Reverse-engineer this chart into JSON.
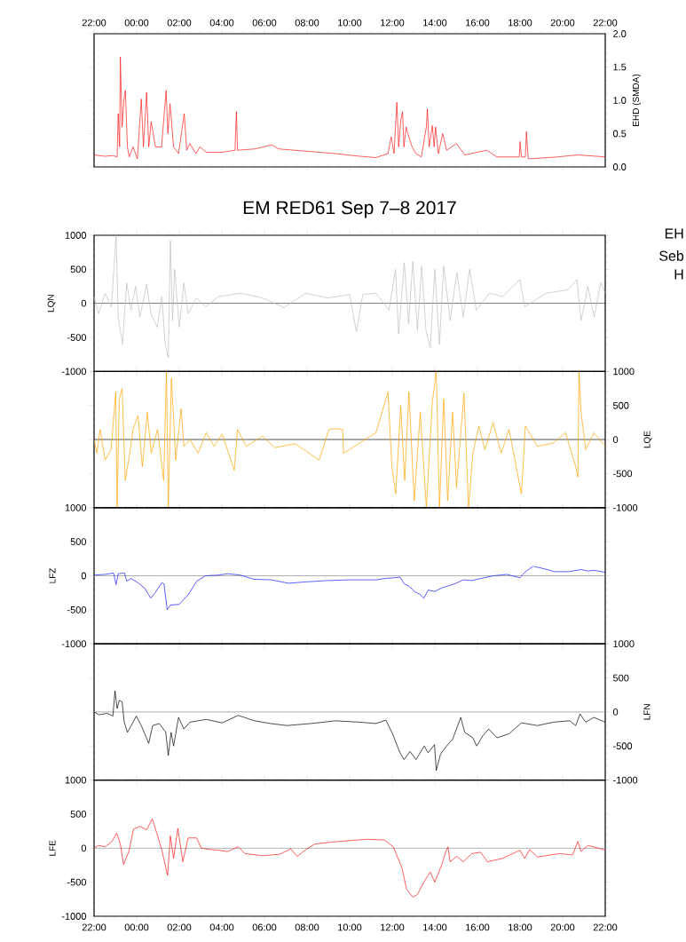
{
  "chart_data": [
    {
      "type": "line",
      "ylabel": "EHD (SMDA)",
      "xlim": [
        "2017-09-07T22:00",
        "2017-09-08T22:00"
      ],
      "ylim": [
        0,
        2.0
      ],
      "xticks": [
        {
          "value": "2017-09-07T22:00",
          "label": "22:00"
        },
        {
          "value": "2017-09-08T00:00",
          "label": "00:00"
        },
        {
          "value": "2017-09-08T02:00",
          "label": "02:00"
        },
        {
          "value": "2017-09-08T04:00",
          "label": "04:00"
        },
        {
          "value": "2017-09-08T06:00",
          "label": "06:00"
        },
        {
          "value": "2017-09-08T08:00",
          "label": "08:00"
        },
        {
          "value": "2017-09-08T10:00",
          "label": "10:00"
        },
        {
          "value": "2017-09-08T12:00",
          "label": "12:00"
        },
        {
          "value": "2017-09-08T14:00",
          "label": "14:00"
        },
        {
          "value": "2017-09-08T16:00",
          "label": "16:00"
        },
        {
          "value": "2017-09-08T18:00",
          "label": "18:00"
        },
        {
          "value": "2017-09-08T20:00",
          "label": "20:00"
        },
        {
          "value": "2017-09-08T22:00",
          "label": "22:00"
        }
      ],
      "yticks": [
        {
          "value": 0,
          "label": "0.0"
        },
        {
          "value": 0.5,
          "label": "0.5"
        },
        {
          "value": 1.0,
          "label": "1.0"
        },
        {
          "value": 1.5,
          "label": "1.5"
        },
        {
          "value": 2.0,
          "label": "2.0"
        }
      ],
      "series": [
        {
          "color": "#ff1a1a",
          "x": [
            "2017-09-07T22:00",
            "2017-09-07T22:31",
            "2017-09-07T22:53",
            "2017-09-07T23:05",
            "2017-09-07T23:08",
            "2017-09-07T23:12",
            "2017-09-07T23:14",
            "2017-09-07T23:19",
            "2017-09-07T23:24",
            "2017-09-07T23:28",
            "2017-09-07T23:34",
            "2017-09-07T23:39",
            "2017-09-07T23:50",
            "2017-09-08T00:02",
            "2017-09-08T00:13",
            "2017-09-08T00:19",
            "2017-09-08T00:28",
            "2017-09-08T00:34",
            "2017-09-08T00:41",
            "2017-09-08T00:53",
            "2017-09-08T01:10",
            "2017-09-08T01:23",
            "2017-09-08T01:28",
            "2017-09-08T01:34",
            "2017-09-08T01:44",
            "2017-09-08T01:58",
            "2017-09-08T02:14",
            "2017-09-08T02:21",
            "2017-09-08T02:30",
            "2017-09-08T02:47",
            "2017-09-08T02:58",
            "2017-09-08T03:16",
            "2017-09-08T04:01",
            "2017-09-08T04:37",
            "2017-09-08T04:41",
            "2017-09-08T04:44",
            "2017-09-08T05:32",
            "2017-09-08T06:21",
            "2017-09-08T06:40",
            "2017-09-08T08:11",
            "2017-09-08T09:20",
            "2017-09-08T10:28",
            "2017-09-08T11:14",
            "2017-09-08T11:48",
            "2017-09-08T11:57",
            "2017-09-08T12:05",
            "2017-09-08T12:13",
            "2017-09-08T12:18",
            "2017-09-08T12:24",
            "2017-09-08T12:29",
            "2017-09-08T12:33",
            "2017-09-08T12:39",
            "2017-09-08T12:44",
            "2017-09-08T12:56",
            "2017-09-08T13:07",
            "2017-09-08T13:22",
            "2017-09-08T13:36",
            "2017-09-08T13:39",
            "2017-09-08T13:44",
            "2017-09-08T13:53",
            "2017-09-08T13:58",
            "2017-09-08T14:02",
            "2017-09-08T14:10",
            "2017-09-08T14:22",
            "2017-09-08T14:33",
            "2017-09-08T15:01",
            "2017-09-08T15:24",
            "2017-09-08T16:26",
            "2017-09-08T16:55",
            "2017-09-08T17:58",
            "2017-09-08T18:00",
            "2017-09-08T18:04",
            "2017-09-08T18:15",
            "2017-09-08T18:18",
            "2017-09-08T18:23",
            "2017-09-08T19:46",
            "2017-09-08T20:43",
            "2017-09-08T22:00"
          ],
          "values": [
            0.18,
            0.16,
            0.17,
            0.15,
            0.8,
            0.3,
            1.65,
            0.6,
            1.0,
            1.15,
            0.3,
            0.15,
            0.3,
            0.12,
            1.02,
            0.3,
            1.12,
            0.3,
            0.68,
            0.3,
            0.3,
            1.15,
            0.5,
            0.95,
            0.3,
            0.2,
            0.8,
            0.25,
            0.35,
            0.2,
            0.3,
            0.22,
            0.22,
            0.25,
            0.83,
            0.25,
            0.27,
            0.33,
            0.27,
            0.23,
            0.2,
            0.16,
            0.14,
            0.2,
            0.45,
            0.2,
            0.97,
            0.3,
            0.7,
            0.83,
            0.3,
            0.6,
            0.5,
            0.3,
            0.2,
            0.15,
            0.6,
            0.87,
            0.3,
            0.62,
            0.3,
            0.6,
            0.2,
            0.5,
            0.25,
            0.35,
            0.18,
            0.25,
            0.15,
            0.15,
            0.38,
            0.15,
            0.15,
            0.53,
            0.12,
            0.15,
            0.18,
            0.15
          ]
        }
      ]
    },
    {
      "type": "line",
      "title": "EM RED61 Sep 7–8 2017",
      "ylabel": "LQN",
      "annotations": [
        "EH",
        "Seb",
        "H"
      ],
      "xlim": [
        "2017-09-07T22:00",
        "2017-09-08T22:00"
      ],
      "ylim": [
        -1000,
        1000
      ],
      "tick_labels": "y",
      "xticks": [
        {
          "value": "2017-09-07T22:00",
          "label": null
        },
        {
          "value": "2017-09-08T00:00",
          "label": null
        },
        {
          "value": "2017-09-08T02:00",
          "label": null
        },
        {
          "value": "2017-09-08T04:00",
          "label": null
        },
        {
          "value": "2017-09-08T06:00",
          "label": null
        },
        {
          "value": "2017-09-08T08:00",
          "label": null
        },
        {
          "value": "2017-09-08T10:00",
          "label": null
        },
        {
          "value": "2017-09-08T12:00",
          "label": null
        },
        {
          "value": "2017-09-08T14:00",
          "label": null
        },
        {
          "value": "2017-09-08T16:00",
          "label": null
        },
        {
          "value": "2017-09-08T18:00",
          "label": null
        },
        {
          "value": "2017-09-08T20:00",
          "label": null
        },
        {
          "value": "2017-09-08T22:00",
          "label": null
        }
      ],
      "yticks": [
        -1000,
        -500,
        0,
        500,
        1000
      ],
      "ref_lines": [
        {
          "axis": "y",
          "value": 0,
          "color": "#000000"
        }
      ],
      "series": [
        {
          "color": "#bfbfbf",
          "x": [
            "2017-09-07T22:00",
            "2017-09-07T22:13",
            "2017-09-07T22:31",
            "2017-09-07T22:49",
            "2017-09-07T23:02",
            "2017-09-07T23:08",
            "2017-09-07T23:20",
            "2017-09-07T23:32",
            "2017-09-07T23:44",
            "2017-09-07T23:57",
            "2017-09-08T00:09",
            "2017-09-08T00:28",
            "2017-09-08T00:40",
            "2017-09-08T00:58",
            "2017-09-08T01:11",
            "2017-09-08T01:20",
            "2017-09-08T01:29",
            "2017-09-08T01:35",
            "2017-09-08T01:41",
            "2017-09-08T01:47",
            "2017-09-08T02:00",
            "2017-09-08T02:13",
            "2017-09-08T02:25",
            "2017-09-08T02:49",
            "2017-09-08T03:14",
            "2017-09-08T03:51",
            "2017-09-08T04:52",
            "2017-09-08T05:54",
            "2017-09-08T06:55",
            "2017-09-08T07:57",
            "2017-09-08T08:58",
            "2017-09-08T10:00",
            "2017-09-08T10:19",
            "2017-09-08T10:37",
            "2017-09-08T11:14",
            "2017-09-08T11:51",
            "2017-09-08T12:09",
            "2017-09-08T12:18",
            "2017-09-08T12:34",
            "2017-09-08T12:46",
            "2017-09-08T12:58",
            "2017-09-08T13:11",
            "2017-09-08T13:23",
            "2017-09-08T13:35",
            "2017-09-08T13:47",
            "2017-09-08T14:00",
            "2017-09-08T14:13",
            "2017-09-08T14:25",
            "2017-09-08T14:43",
            "2017-09-08T15:02",
            "2017-09-08T15:20",
            "2017-09-08T15:38",
            "2017-09-08T15:57",
            "2017-09-08T16:34",
            "2017-09-08T17:11",
            "2017-09-08T18:00",
            "2017-09-08T18:13",
            "2017-09-08T19:14",
            "2017-09-08T20:16",
            "2017-09-08T20:40",
            "2017-09-08T20:52",
            "2017-09-08T21:11",
            "2017-09-08T21:29",
            "2017-09-08T21:47",
            "2017-09-08T22:00"
          ],
          "values": [
            100,
            -150,
            150,
            -50,
            1000,
            -200,
            -600,
            300,
            -100,
            250,
            -200,
            280,
            -150,
            -350,
            100,
            -580,
            -800,
            920,
            -250,
            500,
            -350,
            300,
            -150,
            80,
            -50,
            100,
            150,
            80,
            -60,
            150,
            80,
            130,
            -420,
            130,
            150,
            -100,
            500,
            -450,
            600,
            -300,
            620,
            -400,
            550,
            -400,
            -650,
            500,
            -600,
            550,
            -250,
            450,
            -200,
            500,
            -100,
            150,
            100,
            350,
            -50,
            150,
            200,
            350,
            -250,
            250,
            -200,
            300,
            150
          ]
        }
      ]
    },
    {
      "type": "line",
      "ylabel": "LQE",
      "xlim": [
        "2017-09-07T22:00",
        "2017-09-08T22:00"
      ],
      "ylim": [
        -1000,
        1000
      ],
      "tick_labels": "y",
      "xticks": [
        {
          "value": "2017-09-07T22:00",
          "label": null
        },
        {
          "value": "2017-09-08T00:00",
          "label": null
        },
        {
          "value": "2017-09-08T02:00",
          "label": null
        },
        {
          "value": "2017-09-08T04:00",
          "label": null
        },
        {
          "value": "2017-09-08T06:00",
          "label": null
        },
        {
          "value": "2017-09-08T08:00",
          "label": null
        },
        {
          "value": "2017-09-08T10:00",
          "label": null
        },
        {
          "value": "2017-09-08T12:00",
          "label": null
        },
        {
          "value": "2017-09-08T14:00",
          "label": null
        },
        {
          "value": "2017-09-08T16:00",
          "label": null
        },
        {
          "value": "2017-09-08T18:00",
          "label": null
        },
        {
          "value": "2017-09-08T20:00",
          "label": null
        },
        {
          "value": "2017-09-08T22:00",
          "label": null
        }
      ],
      "yticks": [
        -1000,
        -500,
        0,
        500,
        1000
      ],
      "ref_lines": [
        {
          "axis": "y",
          "value": 0,
          "color": "#000000"
        }
      ],
      "series": [
        {
          "color": "#ffa500",
          "x": [
            "2017-09-07T22:00",
            "2017-09-07T22:08",
            "2017-09-07T22:17",
            "2017-09-07T22:31",
            "2017-09-07T22:48",
            "2017-09-07T23:01",
            "2017-09-07T23:05",
            "2017-09-07T23:11",
            "2017-09-07T23:19",
            "2017-09-07T23:28",
            "2017-09-07T23:39",
            "2017-09-07T23:50",
            "2017-09-08T00:04",
            "2017-09-08T00:16",
            "2017-09-08T00:30",
            "2017-09-08T00:41",
            "2017-09-08T00:59",
            "2017-09-08T01:16",
            "2017-09-08T01:24",
            "2017-09-08T01:29",
            "2017-09-08T01:38",
            "2017-09-08T01:50",
            "2017-09-08T02:05",
            "2017-09-08T02:13",
            "2017-09-08T02:30",
            "2017-09-08T02:53",
            "2017-09-08T03:16",
            "2017-09-08T03:38",
            "2017-09-08T04:01",
            "2017-09-08T04:35",
            "2017-09-08T04:44",
            "2017-09-08T05:09",
            "2017-09-08T05:55",
            "2017-09-08T06:29",
            "2017-09-08T07:26",
            "2017-09-08T08:34",
            "2017-09-08T09:02",
            "2017-09-08T09:20",
            "2017-09-08T09:40",
            "2017-09-08T09:43",
            "2017-09-08T10:28",
            "2017-09-08T11:14",
            "2017-09-08T11:48",
            "2017-09-08T11:59",
            "2017-09-08T12:10",
            "2017-09-08T12:24",
            "2017-09-08T12:35",
            "2017-09-08T12:47",
            "2017-09-08T13:02",
            "2017-09-08T13:19",
            "2017-09-08T13:36",
            "2017-09-08T13:53",
            "2017-09-08T14:04",
            "2017-09-08T14:13",
            "2017-09-08T14:25",
            "2017-09-08T14:36",
            "2017-09-08T14:50",
            "2017-09-08T15:01",
            "2017-09-08T15:22",
            "2017-09-08T15:35",
            "2017-09-08T15:47",
            "2017-09-08T16:04",
            "2017-09-08T16:21",
            "2017-09-08T16:44",
            "2017-09-08T17:07",
            "2017-09-08T17:29",
            "2017-09-08T18:04",
            "2017-09-08T18:15",
            "2017-09-08T18:49",
            "2017-09-08T19:34",
            "2017-09-08T20:08",
            "2017-09-08T20:37",
            "2017-09-08T20:43",
            "2017-09-08T20:46",
            "2017-09-08T20:52",
            "2017-09-08T21:05",
            "2017-09-08T21:28",
            "2017-09-08T22:00"
          ],
          "values": [
            0,
            -200,
            150,
            -300,
            -150,
            700,
            -1000,
            600,
            750,
            -600,
            -250,
            150,
            350,
            -400,
            400,
            -200,
            150,
            -600,
            1000,
            -1000,
            900,
            -300,
            450,
            -100,
            0,
            -200,
            100,
            -100,
            80,
            -450,
            150,
            -100,
            50,
            -120,
            -60,
            -300,
            150,
            160,
            150,
            -200,
            -50,
            100,
            700,
            -400,
            -800,
            500,
            -600,
            700,
            -900,
            400,
            -1000,
            550,
            1000,
            -1000,
            600,
            -900,
            400,
            -700,
            680,
            -1000,
            -200,
            200,
            -150,
            250,
            -200,
            150,
            -800,
            200,
            -100,
            -50,
            100,
            -400,
            -550,
            1000,
            400,
            -150,
            100,
            -100
          ]
        }
      ]
    },
    {
      "type": "line",
      "ylabel": "LFZ",
      "xlim": [
        "2017-09-07T22:00",
        "2017-09-08T22:00"
      ],
      "ylim": [
        -1000,
        1000
      ],
      "tick_labels": "y",
      "xticks": [
        {
          "value": "2017-09-07T22:00",
          "label": null
        },
        {
          "value": "2017-09-08T00:00",
          "label": null
        },
        {
          "value": "2017-09-08T02:00",
          "label": null
        },
        {
          "value": "2017-09-08T04:00",
          "label": null
        },
        {
          "value": "2017-09-08T06:00",
          "label": null
        },
        {
          "value": "2017-09-08T08:00",
          "label": null
        },
        {
          "value": "2017-09-08T10:00",
          "label": null
        },
        {
          "value": "2017-09-08T12:00",
          "label": null
        },
        {
          "value": "2017-09-08T14:00",
          "label": null
        },
        {
          "value": "2017-09-08T16:00",
          "label": null
        },
        {
          "value": "2017-09-08T18:00",
          "label": null
        },
        {
          "value": "2017-09-08T20:00",
          "label": null
        },
        {
          "value": "2017-09-08T22:00",
          "label": null
        }
      ],
      "yticks": [
        -1000,
        -500,
        0,
        500,
        1000
      ],
      "ref_lines": [
        {
          "axis": "y",
          "value": 0,
          "color": "#999999"
        }
      ],
      "series": [
        {
          "color": "#1a1aff",
          "x": [
            "2017-09-07T22:00",
            "2017-09-07T22:31",
            "2017-09-07T22:55",
            "2017-09-07T23:02",
            "2017-09-07T23:08",
            "2017-09-07T23:26",
            "2017-09-07T23:32",
            "2017-09-07T23:44",
            "2017-09-08T00:03",
            "2017-09-08T00:22",
            "2017-09-08T00:40",
            "2017-09-08T00:52",
            "2017-09-08T01:11",
            "2017-09-08T01:17",
            "2017-09-08T01:26",
            "2017-09-08T01:35",
            "2017-09-08T02:00",
            "2017-09-08T02:25",
            "2017-09-08T02:49",
            "2017-09-08T03:14",
            "2017-09-08T03:51",
            "2017-09-08T04:16",
            "2017-09-08T04:52",
            "2017-09-08T05:29",
            "2017-09-08T06:19",
            "2017-09-08T07:08",
            "2017-09-08T07:57",
            "2017-09-08T08:58",
            "2017-09-08T10:00",
            "2017-09-08T11:14",
            "2017-09-08T11:38",
            "2017-09-08T12:03",
            "2017-09-08T12:22",
            "2017-09-08T12:34",
            "2017-09-08T12:46",
            "2017-09-08T13:05",
            "2017-09-08T13:17",
            "2017-09-08T13:29",
            "2017-09-08T13:41",
            "2017-09-08T14:00",
            "2017-09-08T14:19",
            "2017-09-08T14:55",
            "2017-09-08T15:20",
            "2017-09-08T15:44",
            "2017-09-08T16:09",
            "2017-09-08T16:46",
            "2017-09-08T17:23",
            "2017-09-08T18:00",
            "2017-09-08T18:13",
            "2017-09-08T18:37",
            "2017-09-08T19:02",
            "2017-09-08T19:38",
            "2017-09-08T20:16",
            "2017-09-08T20:52",
            "2017-09-08T21:11",
            "2017-09-08T21:29",
            "2017-09-08T22:00"
          ],
          "values": [
            10,
            20,
            40,
            -130,
            30,
            40,
            -80,
            -40,
            -100,
            -180,
            -330,
            -250,
            -100,
            -120,
            -500,
            -430,
            -420,
            -280,
            -80,
            0,
            10,
            30,
            10,
            -50,
            -60,
            -110,
            -90,
            -70,
            -60,
            -60,
            -40,
            -30,
            -20,
            -120,
            -150,
            -240,
            -270,
            -330,
            -210,
            -230,
            -180,
            -120,
            -60,
            -70,
            -40,
            0,
            20,
            -30,
            50,
            140,
            110,
            60,
            60,
            90,
            70,
            80,
            50
          ]
        }
      ]
    },
    {
      "type": "line",
      "ylabel": "LFN",
      "xlim": [
        "2017-09-07T22:00",
        "2017-09-08T22:00"
      ],
      "ylim": [
        -1000,
        1000
      ],
      "tick_labels": "y",
      "xticks": [
        {
          "value": "2017-09-07T22:00",
          "label": null
        },
        {
          "value": "2017-09-08T00:00",
          "label": null
        },
        {
          "value": "2017-09-08T02:00",
          "label": null
        },
        {
          "value": "2017-09-08T04:00",
          "label": null
        },
        {
          "value": "2017-09-08T06:00",
          "label": null
        },
        {
          "value": "2017-09-08T08:00",
          "label": null
        },
        {
          "value": "2017-09-08T10:00",
          "label": null
        },
        {
          "value": "2017-09-08T12:00",
          "label": null
        },
        {
          "value": "2017-09-08T14:00",
          "label": null
        },
        {
          "value": "2017-09-08T16:00",
          "label": null
        },
        {
          "value": "2017-09-08T18:00",
          "label": null
        },
        {
          "value": "2017-09-08T20:00",
          "label": null
        },
        {
          "value": "2017-09-08T22:00",
          "label": null
        }
      ],
      "yticks": [
        -1000,
        -500,
        0,
        500,
        1000
      ],
      "ref_lines": [
        {
          "axis": "y",
          "value": 0,
          "color": "#999999"
        }
      ],
      "series": [
        {
          "color": "#000000",
          "x": [
            "2017-09-07T22:00",
            "2017-09-07T22:14",
            "2017-09-07T22:37",
            "2017-09-07T22:53",
            "2017-09-07T22:59",
            "2017-09-07T23:05",
            "2017-09-07T23:11",
            "2017-09-07T23:19",
            "2017-09-07T23:25",
            "2017-09-07T23:34",
            "2017-09-07T23:50",
            "2017-09-07T23:59",
            "2017-09-08T00:13",
            "2017-09-08T00:34",
            "2017-09-08T00:45",
            "2017-09-08T01:04",
            "2017-09-08T01:22",
            "2017-09-08T01:29",
            "2017-09-08T01:37",
            "2017-09-08T01:44",
            "2017-09-08T01:58",
            "2017-09-08T02:13",
            "2017-09-08T02:30",
            "2017-09-08T03:16",
            "2017-09-08T04:01",
            "2017-09-08T04:46",
            "2017-09-08T05:32",
            "2017-09-08T06:17",
            "2017-09-08T07:03",
            "2017-09-08T08:11",
            "2017-09-08T09:20",
            "2017-09-08T10:28",
            "2017-09-08T11:14",
            "2017-09-08T11:42",
            "2017-09-08T11:59",
            "2017-09-08T12:22",
            "2017-09-08T12:33",
            "2017-09-08T12:50",
            "2017-09-08T13:07",
            "2017-09-08T13:30",
            "2017-09-08T13:41",
            "2017-09-08T13:59",
            "2017-09-08T14:04",
            "2017-09-08T14:16",
            "2017-09-08T14:33",
            "2017-09-08T14:50",
            "2017-09-08T15:01",
            "2017-09-08T15:13",
            "2017-09-08T15:24",
            "2017-09-08T15:47",
            "2017-09-08T15:58",
            "2017-09-08T16:15",
            "2017-09-08T16:32",
            "2017-09-08T16:55",
            "2017-09-08T17:29",
            "2017-09-08T18:04",
            "2017-09-08T18:49",
            "2017-09-08T19:34",
            "2017-09-08T20:20",
            "2017-09-08T20:37",
            "2017-09-08T20:49",
            "2017-09-08T21:05",
            "2017-09-08T21:28",
            "2017-09-08T22:00"
          ],
          "values": [
            0,
            -40,
            -20,
            -60,
            310,
            50,
            170,
            150,
            -150,
            -300,
            -150,
            -60,
            -200,
            -460,
            -200,
            -170,
            -300,
            -640,
            -300,
            -500,
            -80,
            -250,
            -150,
            -110,
            -160,
            -50,
            -130,
            -170,
            -200,
            -170,
            -130,
            -150,
            -170,
            -120,
            -300,
            -600,
            -700,
            -580,
            -700,
            -500,
            -600,
            -480,
            -860,
            -620,
            -500,
            -400,
            -250,
            -80,
            -300,
            -380,
            -500,
            -350,
            -250,
            -380,
            -320,
            -160,
            -200,
            -150,
            -130,
            -200,
            -30,
            -150,
            -80,
            -150
          ]
        }
      ]
    },
    {
      "type": "line",
      "ylabel": "LFE",
      "xlim": [
        "2017-09-07T22:00",
        "2017-09-08T22:00"
      ],
      "ylim": [
        -1000,
        1000
      ],
      "xticks": [
        {
          "value": "2017-09-07T22:00",
          "label": "22:00"
        },
        {
          "value": "2017-09-08T00:00",
          "label": "00:00"
        },
        {
          "value": "2017-09-08T02:00",
          "label": "02:00"
        },
        {
          "value": "2017-09-08T04:00",
          "label": "04:00"
        },
        {
          "value": "2017-09-08T06:00",
          "label": "06:00"
        },
        {
          "value": "2017-09-08T08:00",
          "label": "08:00"
        },
        {
          "value": "2017-09-08T10:00",
          "label": "10:00"
        },
        {
          "value": "2017-09-08T12:00",
          "label": "12:00"
        },
        {
          "value": "2017-09-08T14:00",
          "label": "14:00"
        },
        {
          "value": "2017-09-08T16:00",
          "label": "16:00"
        },
        {
          "value": "2017-09-08T18:00",
          "label": "18:00"
        },
        {
          "value": "2017-09-08T20:00",
          "label": "20:00"
        },
        {
          "value": "2017-09-08T22:00",
          "label": "22:00"
        }
      ],
      "yticks": [
        -1000,
        -500,
        0,
        500,
        1000
      ],
      "ref_lines": [
        {
          "axis": "y",
          "value": 0,
          "color": "#999999"
        }
      ],
      "series": [
        {
          "color": "#ff1a1a",
          "x": [
            "2017-09-07T22:00",
            "2017-09-07T22:13",
            "2017-09-07T22:31",
            "2017-09-07T22:49",
            "2017-09-07T23:04",
            "2017-09-07T23:14",
            "2017-09-07T23:23",
            "2017-09-07T23:38",
            "2017-09-07T23:51",
            "2017-09-08T00:09",
            "2017-09-08T00:28",
            "2017-09-08T00:44",
            "2017-09-08T00:52",
            "2017-09-08T01:11",
            "2017-09-08T01:27",
            "2017-09-08T01:35",
            "2017-09-08T01:44",
            "2017-09-08T01:56",
            "2017-09-08T02:10",
            "2017-09-08T02:25",
            "2017-09-08T02:49",
            "2017-09-08T03:02",
            "2017-09-08T03:26",
            "2017-09-08T03:51",
            "2017-09-08T04:16",
            "2017-09-08T04:46",
            "2017-09-08T05:05",
            "2017-09-08T05:54",
            "2017-09-08T06:43",
            "2017-09-08T07:14",
            "2017-09-08T07:32",
            "2017-09-08T07:57",
            "2017-09-08T08:22",
            "2017-09-08T09:11",
            "2017-09-08T10:00",
            "2017-09-08T10:49",
            "2017-09-08T11:38",
            "2017-09-08T12:03",
            "2017-09-08T12:28",
            "2017-09-08T12:40",
            "2017-09-08T12:58",
            "2017-09-08T13:11",
            "2017-09-08T13:29",
            "2017-09-08T13:47",
            "2017-09-08T14:00",
            "2017-09-08T14:19",
            "2017-09-08T14:31",
            "2017-09-08T14:37",
            "2017-09-08T14:43",
            "2017-09-08T15:02",
            "2017-09-08T15:20",
            "2017-09-08T15:44",
            "2017-09-08T16:09",
            "2017-09-08T16:28",
            "2017-09-08T17:11",
            "2017-09-08T18:00",
            "2017-09-08T18:13",
            "2017-09-08T18:27",
            "2017-09-08T18:49",
            "2017-09-08T19:51",
            "2017-09-08T20:28",
            "2017-09-08T20:43",
            "2017-09-08T20:52",
            "2017-09-08T21:11",
            "2017-09-08T21:41",
            "2017-09-08T22:00"
          ],
          "values": [
            0,
            40,
            20,
            90,
            220,
            60,
            -240,
            -50,
            280,
            320,
            270,
            430,
            300,
            -30,
            -400,
            180,
            -150,
            290,
            -200,
            150,
            150,
            0,
            -20,
            -30,
            -50,
            20,
            -80,
            -110,
            -90,
            -10,
            -120,
            -20,
            60,
            90,
            110,
            130,
            120,
            20,
            -300,
            -600,
            -720,
            -680,
            -500,
            -350,
            -500,
            -250,
            -50,
            20,
            -200,
            -120,
            -200,
            -80,
            -60,
            -200,
            -150,
            -30,
            -150,
            -20,
            -130,
            -80,
            -100,
            100,
            -50,
            40,
            0,
            -30
          ]
        }
      ]
    }
  ]
}
